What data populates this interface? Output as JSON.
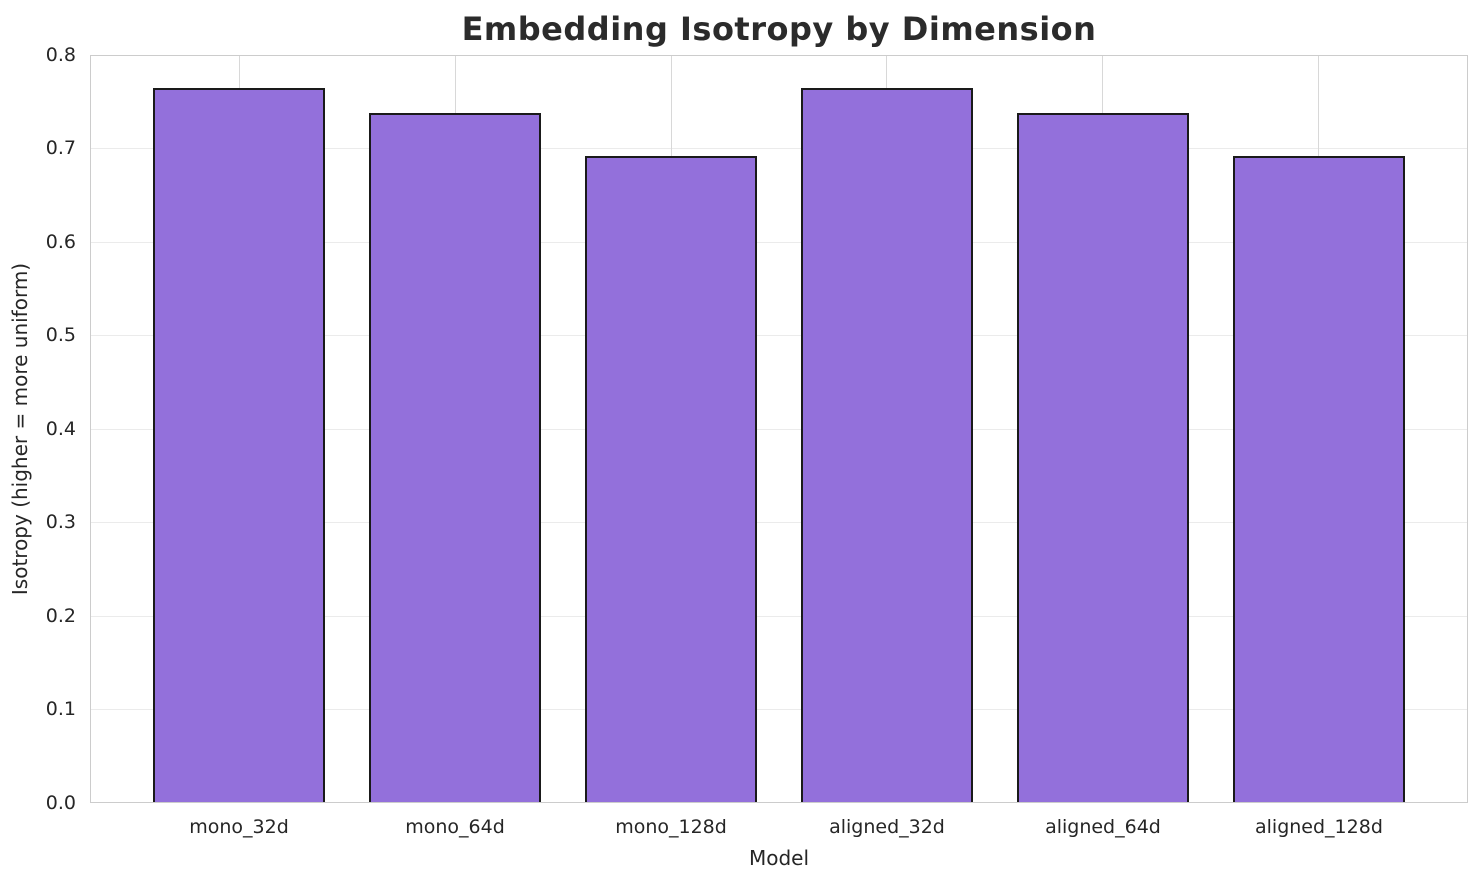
{
  "chart_data": {
    "type": "bar",
    "title": "Embedding Isotropy by Dimension",
    "xlabel": "Model",
    "ylabel": "Isotropy (higher = more uniform)",
    "categories": [
      "mono_32d",
      "mono_64d",
      "mono_128d",
      "aligned_32d",
      "aligned_64d",
      "aligned_128d"
    ],
    "values": [
      0.765,
      0.738,
      0.692,
      0.765,
      0.738,
      0.692
    ],
    "ylim": [
      0.0,
      0.8
    ],
    "ytick_labels": [
      "0.0",
      "0.1",
      "0.2",
      "0.3",
      "0.4",
      "0.5",
      "0.6",
      "0.7",
      "0.8"
    ],
    "grid": true,
    "legend": null,
    "bar_color": "#9370DB",
    "bar_edge_color": "#1a1a1a",
    "background_color": "#ffffff",
    "grid_color": "#e0e0e0",
    "text_color": "#262626"
  }
}
